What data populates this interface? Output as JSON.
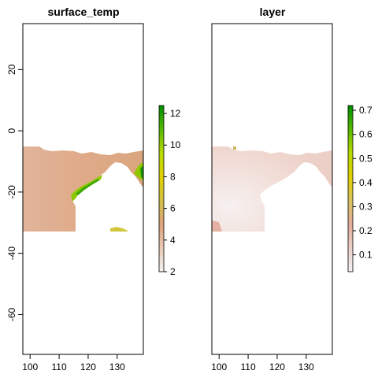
{
  "chart_data": [
    {
      "type": "heatmap",
      "title": "surface_temp",
      "xlabel": "",
      "ylabel": "",
      "xlim": [
        97.5,
        139
      ],
      "ylim": [
        -73,
        35
      ],
      "x_ticks": [
        100,
        110,
        120,
        130
      ],
      "y_ticks": [
        20,
        0,
        -20,
        -40,
        -60
      ],
      "data_extent": {
        "x": [
          97.5,
          139
        ],
        "y": [
          -33,
          -6
        ]
      },
      "colorbar": {
        "ticks": [
          2,
          4,
          6,
          8,
          10,
          12
        ],
        "range": [
          2,
          12.5
        ],
        "colors": [
          "#f2f2f2",
          "#e8c9b6",
          "#dba27a",
          "#d2c046",
          "#e0d000",
          "#b8da00",
          "#57b800",
          "#008f00"
        ]
      },
      "description_values": {
        "open_ocean_range": [
          4,
          5
        ],
        "coastal_high": 10,
        "max": 12.5
      }
    },
    {
      "type": "heatmap",
      "title": "layer",
      "xlabel": "",
      "ylabel": "",
      "xlim": [
        97.5,
        139
      ],
      "ylim": [
        -73,
        35
      ],
      "x_ticks": [
        100,
        110,
        120,
        130
      ],
      "y_ticks": [],
      "data_extent": {
        "x": [
          97.5,
          139
        ],
        "y": [
          -33,
          -6
        ]
      },
      "colorbar": {
        "ticks": [
          0.1,
          0.2,
          0.3,
          0.4,
          0.5,
          0.6,
          0.7
        ],
        "range": [
          0.03,
          0.72
        ],
        "colors": [
          "#f2f2f2",
          "#ebd0c6",
          "#e2ad9c",
          "#d9c25e",
          "#e0d000",
          "#b8da00",
          "#57b800",
          "#008f00"
        ]
      }
    }
  ]
}
